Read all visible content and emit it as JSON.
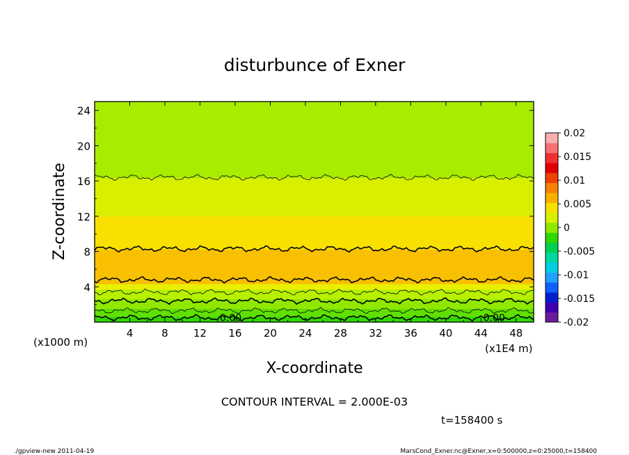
{
  "chart_data": {
    "type": "heatmap",
    "title": "disturbunce of Exner",
    "xlabel": "X-coordinate",
    "ylabel": "Z-coordinate",
    "x_unit": "(x1E4 m)",
    "y_unit": "(x1000 m)",
    "x_ticks": [
      "4",
      "8",
      "12",
      "16",
      "20",
      "24",
      "28",
      "32",
      "36",
      "40",
      "44",
      "48"
    ],
    "y_ticks": [
      "4",
      "8",
      "12",
      "16",
      "20",
      "24"
    ],
    "xlim": [
      0,
      50
    ],
    "ylim": [
      0,
      25
    ],
    "colorbar": {
      "ticks": [
        "0.02",
        "0.015",
        "0.01",
        "0.005",
        "0",
        "-0.005",
        "-0.01",
        "-0.015",
        "-0.02"
      ],
      "range": [
        -0.02,
        0.02
      ],
      "colors": [
        "#6a1b9a",
        "#3f00b0",
        "#0020d0",
        "#1060ff",
        "#20a0ff",
        "#00d0e0",
        "#00d8a0",
        "#00d050",
        "#30d800",
        "#90e800",
        "#d8f000",
        "#f8e000",
        "#f8b000",
        "#f88000",
        "#f04000",
        "#e00000",
        "#f03030",
        "#f87070",
        "#f8b0b0"
      ]
    },
    "bands": [
      {
        "z_from": 0.0,
        "z_to": 0.6,
        "color": "#30d800"
      },
      {
        "z_from": 0.6,
        "z_to": 1.5,
        "color": "#60e000"
      },
      {
        "z_from": 1.5,
        "z_to": 2.6,
        "color": "#90e800"
      },
      {
        "z_from": 2.6,
        "z_to": 3.7,
        "color": "#b8f000"
      },
      {
        "z_from": 3.7,
        "z_to": 4.3,
        "color": "#e8f000"
      },
      {
        "z_from": 4.3,
        "z_to": 8.2,
        "color": "#f8c000"
      },
      {
        "z_from": 8.2,
        "z_to": 12.0,
        "color": "#f8e000"
      },
      {
        "z_from": 12.0,
        "z_to": 16.3,
        "color": "#d8f000"
      },
      {
        "z_from": 16.3,
        "z_to": 25.0,
        "color": "#a8ec00"
      }
    ],
    "contours": [
      {
        "z": 0.5,
        "width": 1.6
      },
      {
        "z": 1.3,
        "width": 0.8
      },
      {
        "z": 2.4,
        "width": 1.6
      },
      {
        "z": 3.4,
        "width": 0.8
      },
      {
        "z": 4.8,
        "width": 1.6
      },
      {
        "z": 8.3,
        "width": 1.6
      },
      {
        "z": 16.4,
        "width": 0.8
      }
    ],
    "contour_labels": [
      {
        "text": "0.00",
        "x": 15.5,
        "z": 0.5
      },
      {
        "text": "0.00",
        "x": 45.5,
        "z": 0.5
      }
    ],
    "interval_text": "CONTOUR INTERVAL = 2.000E-03",
    "time_text": "t=158400 s"
  },
  "footer": {
    "left": "./gpview-new   2011-04-19",
    "right": "MarsCond_Exner.nc@Exner,x=0:500000,z=0:25000,t=158400"
  }
}
